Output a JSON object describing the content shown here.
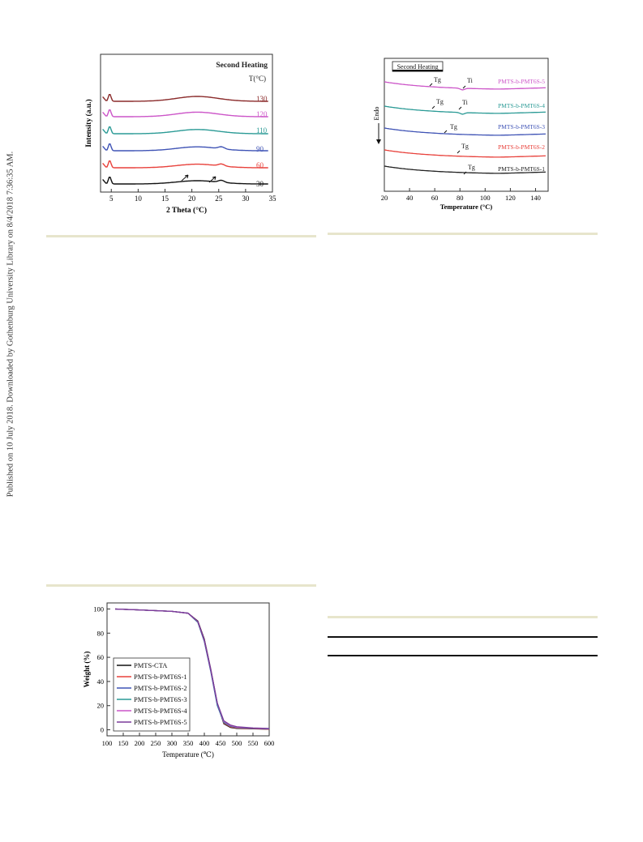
{
  "sidebar_text": "Published on 10 July 2018. Downloaded by Gothenburg University Library on 8/4/2018 7:36:35 AM.",
  "figure_xrd": {
    "chart_data": {
      "type": "line",
      "title": "Second Heating",
      "xlabel": "2 Theta (°C)",
      "ylabel": "Intensity (a.u.)",
      "legend_title": "T(°C)",
      "xlim": [
        3,
        35
      ],
      "xticks": [
        5,
        10,
        15,
        20,
        25,
        30,
        35
      ],
      "series": [
        {
          "name": "30",
          "color": "#111111"
        },
        {
          "name": "60",
          "color": "#e8413b"
        },
        {
          "name": "90",
          "color": "#3f53b5"
        },
        {
          "name": "110",
          "color": "#2a9a95"
        },
        {
          "name": "120",
          "color": "#cc55c8"
        },
        {
          "name": "130",
          "color": "#8a2a2a"
        }
      ]
    }
  },
  "figure_dsc": {
    "chart_data": {
      "type": "line",
      "title": "Second Heating",
      "xlabel": "Temperature (°C)",
      "ylabel": "Endo",
      "xlim": [
        20,
        150
      ],
      "xticks": [
        20,
        40,
        60,
        80,
        100,
        120,
        140
      ],
      "series": [
        {
          "name": "PMTS-b-PMT6S-1",
          "color": "#222222",
          "annotations": [
            "Tg"
          ]
        },
        {
          "name": "PMTS-b-PMT6S-2",
          "color": "#e8413b",
          "annotations": [
            "Tg"
          ]
        },
        {
          "name": "PMTS-b-PMT6S-3",
          "color": "#3f53b5",
          "annotations": [
            "Tg"
          ]
        },
        {
          "name": "PMTS-b-PMT6S-4",
          "color": "#2a9a95",
          "annotations": [
            "Tg",
            "Ti"
          ]
        },
        {
          "name": "PMTS-b-PMT6S-5",
          "color": "#cc55c8",
          "annotations": [
            "Tg",
            "Ti"
          ]
        }
      ]
    }
  },
  "figure_tga": {
    "chart_data": {
      "type": "line",
      "xlabel": "Temperature (℃)",
      "ylabel": "Weight (%)",
      "xlim": [
        100,
        600
      ],
      "ylim": [
        -5,
        105
      ],
      "xticks": [
        100,
        150,
        200,
        250,
        300,
        350,
        400,
        450,
        500,
        550,
        600
      ],
      "yticks": [
        0,
        20,
        40,
        60,
        80,
        100
      ],
      "x": [
        125,
        200,
        300,
        350,
        380,
        400,
        420,
        440,
        460,
        480,
        500,
        550,
        600
      ],
      "series": [
        {
          "name": "PMTS-CTA",
          "color": "#111111",
          "values": [
            100,
            99.2,
            98,
            96.5,
            90,
            75,
            50,
            22,
            5,
            2,
            1.2,
            0.8,
            0.5
          ]
        },
        {
          "name": "PMTS-b-PMT6S-1",
          "color": "#e8413b",
          "values": [
            100,
            99.2,
            98,
            96.5,
            89.5,
            74,
            49,
            21,
            5.5,
            2.5,
            1.5,
            1,
            0.6
          ]
        },
        {
          "name": "PMTS-b-PMT6S-2",
          "color": "#3f53b5",
          "values": [
            100,
            99.2,
            98,
            96.5,
            89,
            73,
            48,
            20,
            6,
            3,
            1.8,
            1.2,
            0.8
          ]
        },
        {
          "name": "PMTS-b-PMT6S-3",
          "color": "#2a9a95",
          "values": [
            100,
            99.2,
            98,
            96.5,
            89,
            73.5,
            49,
            21,
            6.5,
            3.2,
            2,
            1.3,
            0.9
          ]
        },
        {
          "name": "PMTS-b-PMT6S-4",
          "color": "#cc55c8",
          "values": [
            100,
            99.2,
            98,
            96.5,
            89.5,
            74,
            49.5,
            22,
            7,
            3.5,
            2.2,
            1.4,
            1
          ]
        },
        {
          "name": "PMTS-b-PMT6S-5",
          "color": "#7a3a9a",
          "values": [
            100,
            99.2,
            98,
            96.5,
            89.5,
            74,
            49.5,
            22,
            7.5,
            4,
            2.5,
            1.5,
            1.1
          ]
        }
      ]
    }
  }
}
